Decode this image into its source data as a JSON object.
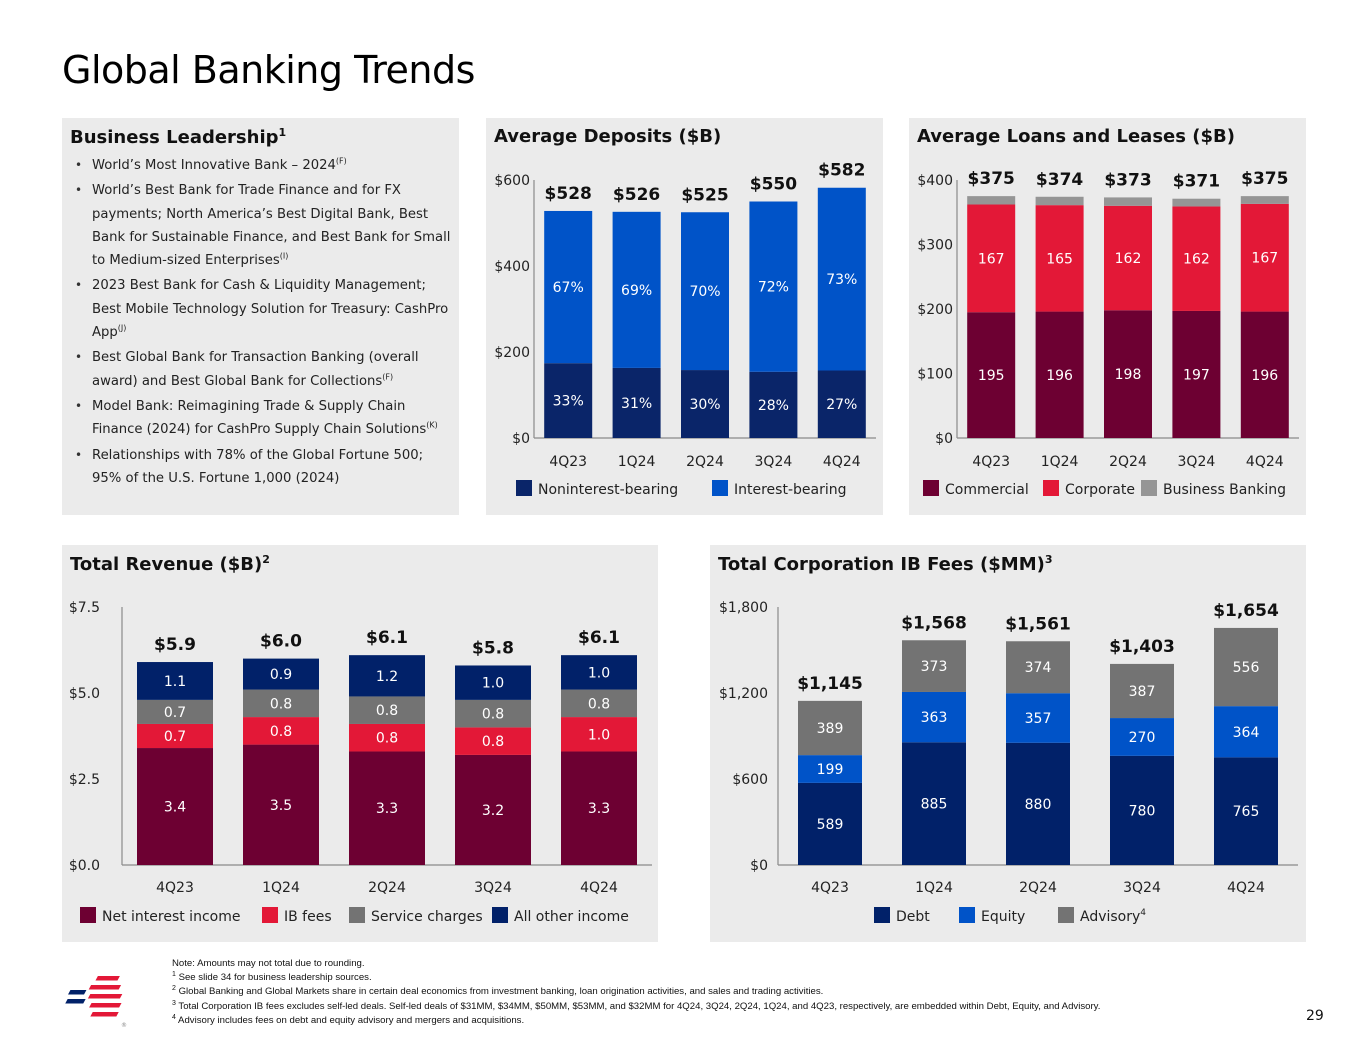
{
  "page": {
    "title": "Global Banking Trends",
    "page_number": "29"
  },
  "colors": {
    "panel_bg": "#ebebeb",
    "navy": "#012169",
    "dark_navy": "#0a2569",
    "blue": "#0053c8",
    "maroon": "#6d0032",
    "red": "#e31837",
    "gray": "#737373",
    "light_gray": "#959595"
  },
  "leadership": {
    "title": "Business Leadership",
    "title_sup": "1",
    "items": [
      {
        "text": "World’s Most Innovative Bank – 2024",
        "sup": "(F)"
      },
      {
        "text": "World’s Best Bank for Trade Finance and for FX payments; North America’s Best Digital Bank, Best Bank for Sustainable Finance, and Best Bank for Small to Medium-sized Enterprises",
        "sup": "(I)"
      },
      {
        "text": "2023 Best Bank for Cash & Liquidity Management; Best Mobile Technology Solution for Treasury: CashPro App",
        "sup": "(J)"
      },
      {
        "text": "Best Global Bank for Transaction Banking (overall award) and Best Global Bank for Collections",
        "sup": "(F)"
      },
      {
        "text": "Model Bank: Reimagining Trade & Supply Chain Finance (2024) for CashPro Supply Chain Solutions",
        "sup": "(K)"
      },
      {
        "text": "Relationships with 78% of the Global Fortune 500; 95% of the U.S. Fortune 1,000 (2024)",
        "sup": ""
      }
    ]
  },
  "chart_data": [
    {
      "id": "deposits",
      "type": "bar",
      "stacked": true,
      "title": "Average Deposits ($B)",
      "title_sup": "",
      "categories": [
        "4Q23",
        "1Q24",
        "2Q24",
        "3Q24",
        "4Q24"
      ],
      "ylim": [
        0,
        600
      ],
      "yticks": [
        0,
        200,
        400,
        600
      ],
      "ytick_labels": [
        "$0",
        "$200",
        "$400",
        "$600"
      ],
      "totals": [
        528,
        526,
        525,
        550,
        582
      ],
      "total_labels": [
        "$528",
        "$526",
        "$525",
        "$550",
        "$582"
      ],
      "series": [
        {
          "name": "Noninterest-bearing",
          "color": "#0a2569",
          "values": [
            174,
            163,
            158,
            154,
            157
          ],
          "labels": [
            "33%",
            "31%",
            "30%",
            "28%",
            "27%"
          ]
        },
        {
          "name": "Interest-bearing",
          "color": "#0053c8",
          "values": [
            354,
            363,
            367,
            396,
            425
          ],
          "labels": [
            "67%",
            "69%",
            "70%",
            "72%",
            "73%"
          ]
        }
      ],
      "legend_position": "bottom"
    },
    {
      "id": "loans",
      "type": "bar",
      "stacked": true,
      "title": "Average Loans and Leases ($B)",
      "title_sup": "",
      "categories": [
        "4Q23",
        "1Q24",
        "2Q24",
        "3Q24",
        "4Q24"
      ],
      "ylim": [
        0,
        400
      ],
      "yticks": [
        0,
        100,
        200,
        300,
        400
      ],
      "ytick_labels": [
        "$0",
        "$100",
        "$200",
        "$300",
        "$400"
      ],
      "totals": [
        375,
        374,
        373,
        371,
        375
      ],
      "total_labels": [
        "$375",
        "$374",
        "$373",
        "$371",
        "$375"
      ],
      "series": [
        {
          "name": "Commercial",
          "color": "#6d0032",
          "values": [
            195,
            196,
            198,
            197,
            196
          ],
          "labels": [
            "195",
            "196",
            "198",
            "197",
            "196"
          ]
        },
        {
          "name": "Corporate",
          "color": "#e31837",
          "values": [
            167,
            165,
            162,
            162,
            167
          ],
          "labels": [
            "167",
            "165",
            "162",
            "162",
            "167"
          ]
        },
        {
          "name": "Business Banking",
          "color": "#959595",
          "values": [
            13,
            13,
            13,
            12,
            12
          ],
          "labels": [
            "",
            "",
            "",
            "",
            ""
          ]
        }
      ],
      "legend_position": "bottom"
    },
    {
      "id": "revenue",
      "type": "bar",
      "stacked": true,
      "title": "Total Revenue ($B)",
      "title_sup": "2",
      "categories": [
        "4Q23",
        "1Q24",
        "2Q24",
        "3Q24",
        "4Q24"
      ],
      "ylim": [
        0,
        7.5
      ],
      "yticks": [
        0,
        2.5,
        5.0,
        7.5
      ],
      "ytick_labels": [
        "$0.0",
        "$2.5",
        "$5.0",
        "$7.5"
      ],
      "totals": [
        5.9,
        6.0,
        6.1,
        5.8,
        6.1
      ],
      "total_labels": [
        "$5.9",
        "$6.0",
        "$6.1",
        "$5.8",
        "$6.1"
      ],
      "series": [
        {
          "name": "Net interest income",
          "color": "#6d0032",
          "values": [
            3.4,
            3.5,
            3.3,
            3.2,
            3.3
          ],
          "labels": [
            "3.4",
            "3.5",
            "3.3",
            "3.2",
            "3.3"
          ]
        },
        {
          "name": "IB fees",
          "color": "#e31837",
          "values": [
            0.7,
            0.8,
            0.8,
            0.8,
            1.0
          ],
          "labels": [
            "0.7",
            "0.8",
            "0.8",
            "0.8",
            "1.0"
          ]
        },
        {
          "name": "Service charges",
          "color": "#737373",
          "values": [
            0.7,
            0.8,
            0.8,
            0.8,
            0.8
          ],
          "labels": [
            "0.7",
            "0.8",
            "0.8",
            "0.8",
            "0.8"
          ]
        },
        {
          "name": "All other income",
          "color": "#012169",
          "values": [
            1.1,
            0.9,
            1.2,
            1.0,
            1.0
          ],
          "labels": [
            "1.1",
            "0.9",
            "1.2",
            "1.0",
            "1.0"
          ]
        }
      ],
      "legend_position": "bottom"
    },
    {
      "id": "ibfees",
      "type": "bar",
      "stacked": true,
      "title": "Total Corporation IB Fees ($MM)",
      "title_sup": "3",
      "categories": [
        "4Q23",
        "1Q24",
        "2Q24",
        "3Q24",
        "4Q24"
      ],
      "ylim": [
        0,
        1800
      ],
      "yticks": [
        0,
        600,
        1200,
        1800
      ],
      "ytick_labels": [
        "$0",
        "$600",
        "$1,200",
        "$1,800"
      ],
      "totals": [
        1145,
        1568,
        1561,
        1403,
        1654
      ],
      "total_labels": [
        "$1,145",
        "$1,568",
        "$1,561",
        "$1,403",
        "$1,654"
      ],
      "series": [
        {
          "name": "Debt",
          "color": "#012169",
          "values": [
            589,
            885,
            880,
            780,
            765
          ],
          "labels": [
            "589",
            "885",
            "880",
            "780",
            "765"
          ]
        },
        {
          "name": "Equity",
          "color": "#0053c8",
          "values": [
            199,
            363,
            357,
            270,
            364
          ],
          "labels": [
            "199",
            "363",
            "357",
            "270",
            "364"
          ]
        },
        {
          "name": "Advisory",
          "name_sup": "4",
          "color": "#737373",
          "values": [
            389,
            373,
            374,
            387,
            556
          ],
          "labels": [
            "389",
            "373",
            "374",
            "387",
            "556"
          ]
        }
      ],
      "legend_position": "bottom"
    }
  ],
  "footnotes": {
    "note": "Note: Amounts may not total due to rounding.",
    "items": [
      {
        "num": "1",
        "text": "See slide 34 for business leadership sources."
      },
      {
        "num": "2",
        "text": "Global Banking and Global Markets share in certain deal economics from investment banking, loan origination activities, and sales and trading activities."
      },
      {
        "num": "3",
        "text": "Total Corporation IB fees excludes self-led deals. Self-led deals of $31MM, $34MM, $50MM, $53MM, and $32MM for 4Q24, 3Q24, 2Q24, 1Q24, and 4Q23, respectively, are embedded within Debt, Equity, and Advisory."
      },
      {
        "num": "4",
        "text": "Advisory includes fees on debt and equity advisory and mergers and acquisitions."
      }
    ]
  },
  "logo": {
    "name": "Bank of America flag logo",
    "mark": "®"
  }
}
